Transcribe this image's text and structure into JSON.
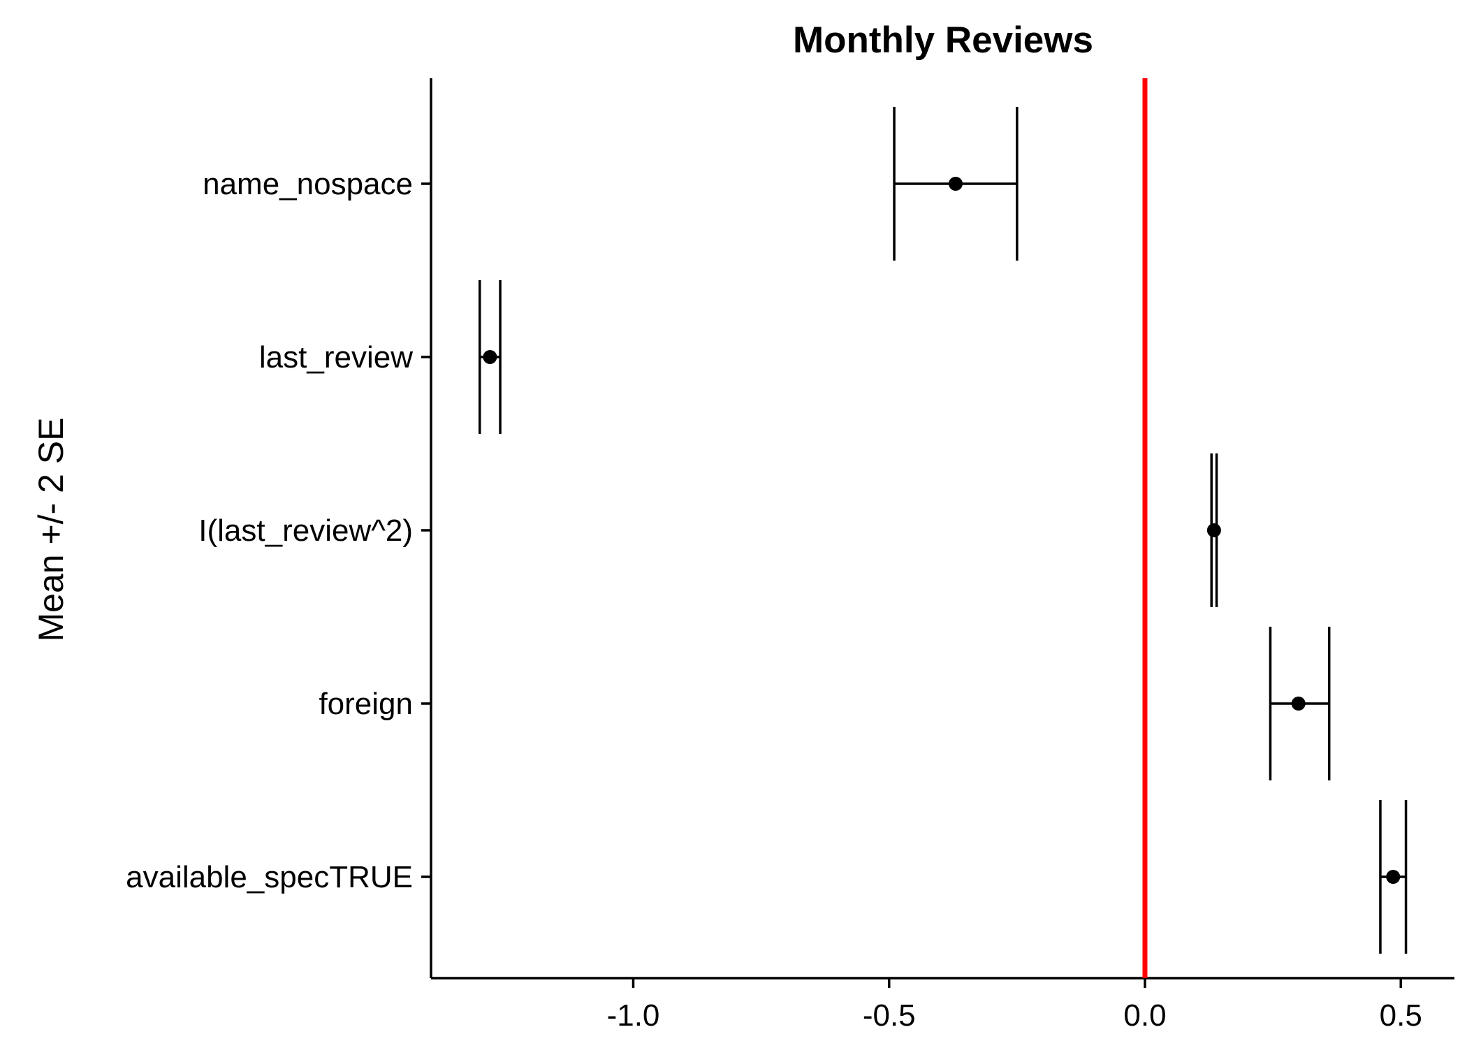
{
  "chart_data": {
    "type": "errorbar",
    "title": "Monthly Reviews",
    "xlabel": "",
    "ylabel": "Mean +/- 2 SE",
    "xlim": [
      -1.39,
      0.6
    ],
    "x_ticks": [
      -1.0,
      -0.5,
      0.0,
      0.5
    ],
    "x_tick_labels": [
      "-1.0",
      "-0.5",
      "0.0",
      "0.5"
    ],
    "reference_line": {
      "x": 0,
      "color": "#ff0000"
    },
    "grid": false,
    "categories": [
      "name_nospace",
      "last_review",
      "I(last_review^2)",
      "foreign",
      "available_specTRUE"
    ],
    "series": [
      {
        "mean": [
          -0.37,
          -1.28,
          0.135,
          0.3,
          0.485
        ],
        "lower": [
          -0.49,
          -1.3,
          0.13,
          0.245,
          0.46
        ],
        "upper": [
          -0.25,
          -1.26,
          0.14,
          0.36,
          0.51
        ]
      }
    ],
    "colors": {
      "marks": "#000000",
      "reference": "#ff0000",
      "axis": "#000000"
    }
  }
}
